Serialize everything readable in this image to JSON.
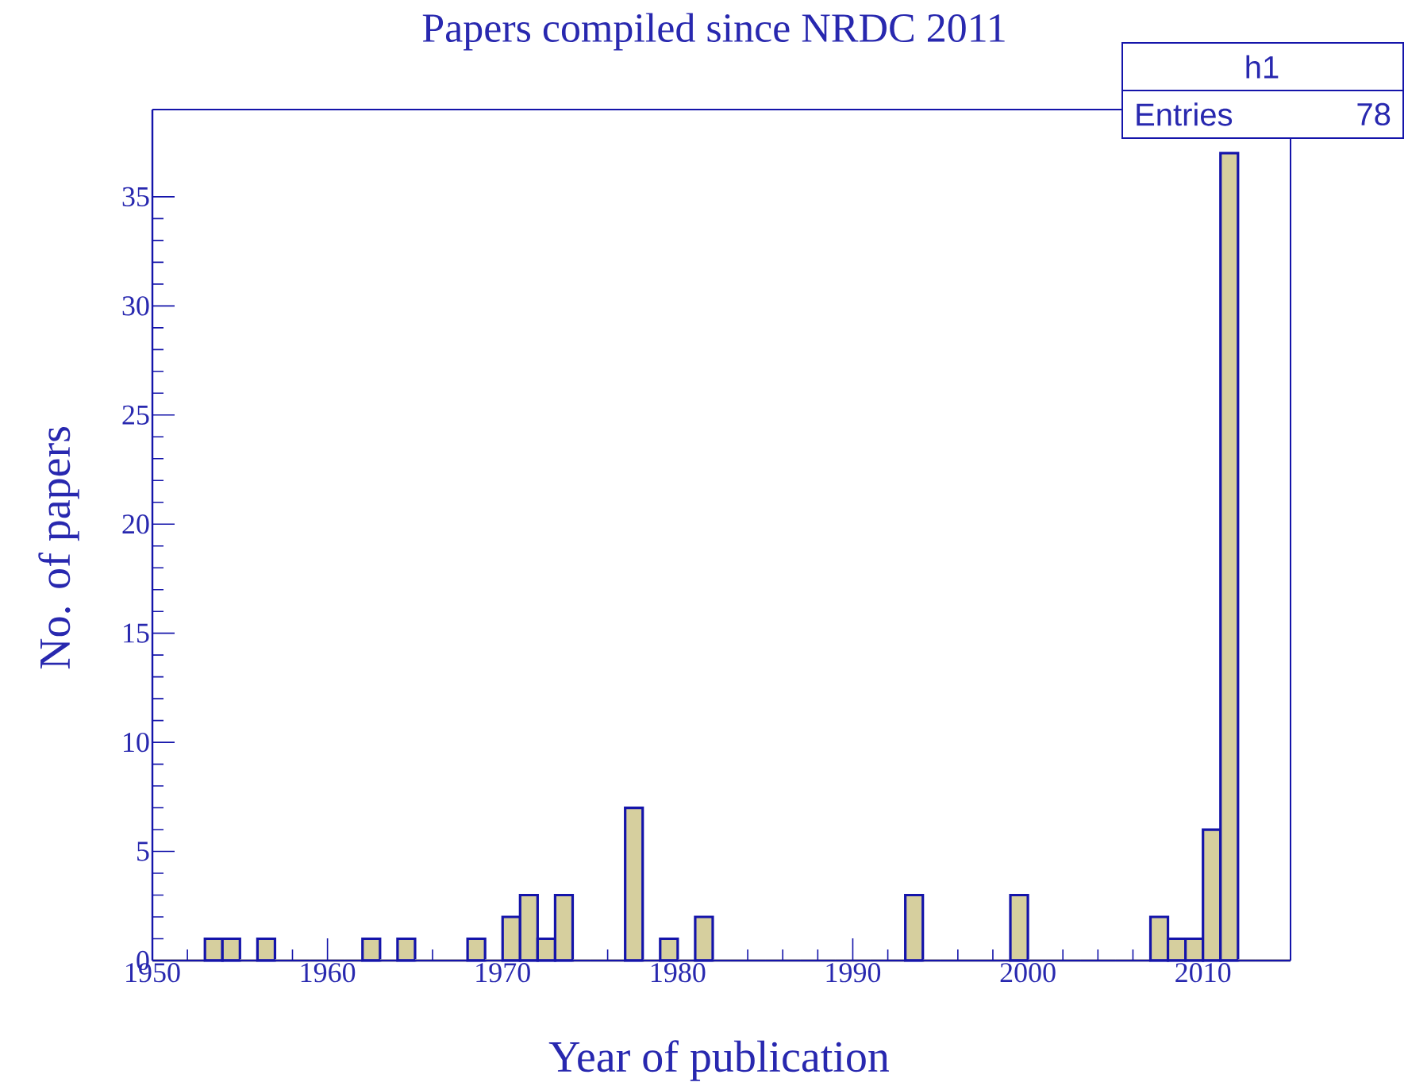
{
  "chart_data": {
    "type": "histogram",
    "title": "Papers compiled since NRDC 2011",
    "xlabel": "Year of publication",
    "ylabel": "No. of papers",
    "annotations": [
      "h1",
      "Entries",
      "78"
    ],
    "bins": [
      1950,
      1951,
      1952,
      1953,
      1954,
      1955,
      1956,
      1957,
      1958,
      1959,
      1960,
      1961,
      1962,
      1963,
      1964,
      1965,
      1966,
      1967,
      1968,
      1969,
      1970,
      1971,
      1972,
      1973,
      1974,
      1975,
      1976,
      1977,
      1978,
      1979,
      1980,
      1981,
      1982,
      1983,
      1984,
      1985,
      1986,
      1987,
      1988,
      1989,
      1990,
      1991,
      1992,
      1993,
      1994,
      1995,
      1996,
      1997,
      1998,
      1999,
      2000,
      2001,
      2002,
      2003,
      2004,
      2005,
      2006,
      2007,
      2008,
      2009,
      2010,
      2011,
      2012,
      2013,
      2014,
      2015
    ],
    "values": [
      0,
      0,
      0,
      1,
      1,
      0,
      1,
      0,
      0,
      0,
      0,
      0,
      1,
      0,
      1,
      0,
      0,
      0,
      1,
      0,
      2,
      3,
      1,
      3,
      0,
      0,
      0,
      7,
      0,
      1,
      0,
      2,
      0,
      0,
      0,
      0,
      0,
      0,
      0,
      0,
      0,
      0,
      0,
      3,
      0,
      0,
      0,
      0,
      0,
      3,
      0,
      0,
      0,
      0,
      0,
      0,
      0,
      2,
      1,
      1,
      6,
      37,
      0,
      0,
      0
    ],
    "color": "#d6cf9e",
    "xlim": [
      1950,
      2015
    ],
    "ylim": [
      0,
      39
    ],
    "xticks": [
      1950,
      1960,
      1970,
      1980,
      1990,
      2000,
      2010
    ],
    "yticks": [
      0,
      5,
      10,
      15,
      20,
      25,
      30,
      35
    ]
  }
}
